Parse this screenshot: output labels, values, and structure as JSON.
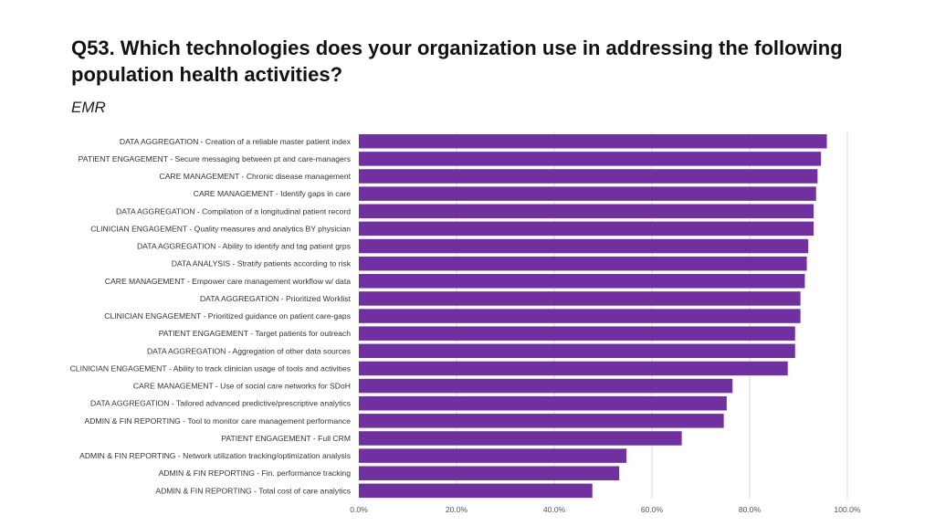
{
  "slide": {
    "title": "Q53. Which technologies does your organization use in addressing the following population health activities?",
    "subtitle": "EMR"
  },
  "chart_data": {
    "type": "bar",
    "orientation": "horizontal",
    "title": "",
    "xlabel": "",
    "ylabel": "",
    "xlim": [
      0,
      100
    ],
    "grid": true,
    "bar_color": "#7030A0",
    "tick_format": "percent_1dp",
    "ticks": [
      "0.0%",
      "20.0%",
      "40.0%",
      "60.0%",
      "80.0%",
      "100.0%"
    ],
    "tick_values": [
      0,
      20,
      40,
      60,
      80,
      100
    ],
    "categories": [
      "DATA AGGREGATION - Creation of a reliable master patient index",
      "PATIENT ENGAGEMENT - Secure messaging between pt and care-managers",
      "CARE MANAGEMENT - Chronic disease management",
      "CARE MANAGEMENT - Identify gaps in care",
      "DATA AGGREGATION - Compilation of a longitudinal patient record",
      "CLINICIAN ENGAGEMENT - Quality measures and analytics BY physician",
      "DATA AGGREGATION - Ability to identify and tag patient grps",
      "DATA ANALYSIS - Stratify patients according to risk",
      "CARE MANAGEMENT - Empower care management workflow w/ data",
      "DATA AGGREGATION - Prioritized Worklist",
      "CLINICIAN ENGAGEMENT - Prioritized guidance on patient care-gaps",
      "PATIENT ENGAGEMENT - Target patients for outreach",
      "DATA AGGREGATION - Aggregation of other data sources",
      "CLINICIAN ENGAGEMENT - Ability to track clinician usage of tools and activities",
      "CARE MANAGEMENT - Use of social care networks for SDoH",
      "DATA AGGREGATION - Tailored advanced predictive/prescriptive analytics",
      "ADMIN & FIN REPORTING - Tool to monitor care management performance",
      "PATIENT ENGAGEMENT - Full CRM",
      "ADMIN & FIN REPORTING - Network utilization tracking/optimization analysis",
      "ADMIN & FIN REPORTING - Fin. performance tracking",
      "ADMIN & FIN REPORTING - Total cost of care analytics"
    ],
    "values": [
      95.8,
      94.6,
      93.9,
      93.6,
      93.1,
      93.1,
      92.0,
      91.7,
      91.3,
      90.4,
      90.4,
      89.3,
      89.3,
      87.8,
      76.5,
      75.3,
      74.7,
      66.1,
      54.8,
      53.3,
      47.8
    ]
  }
}
